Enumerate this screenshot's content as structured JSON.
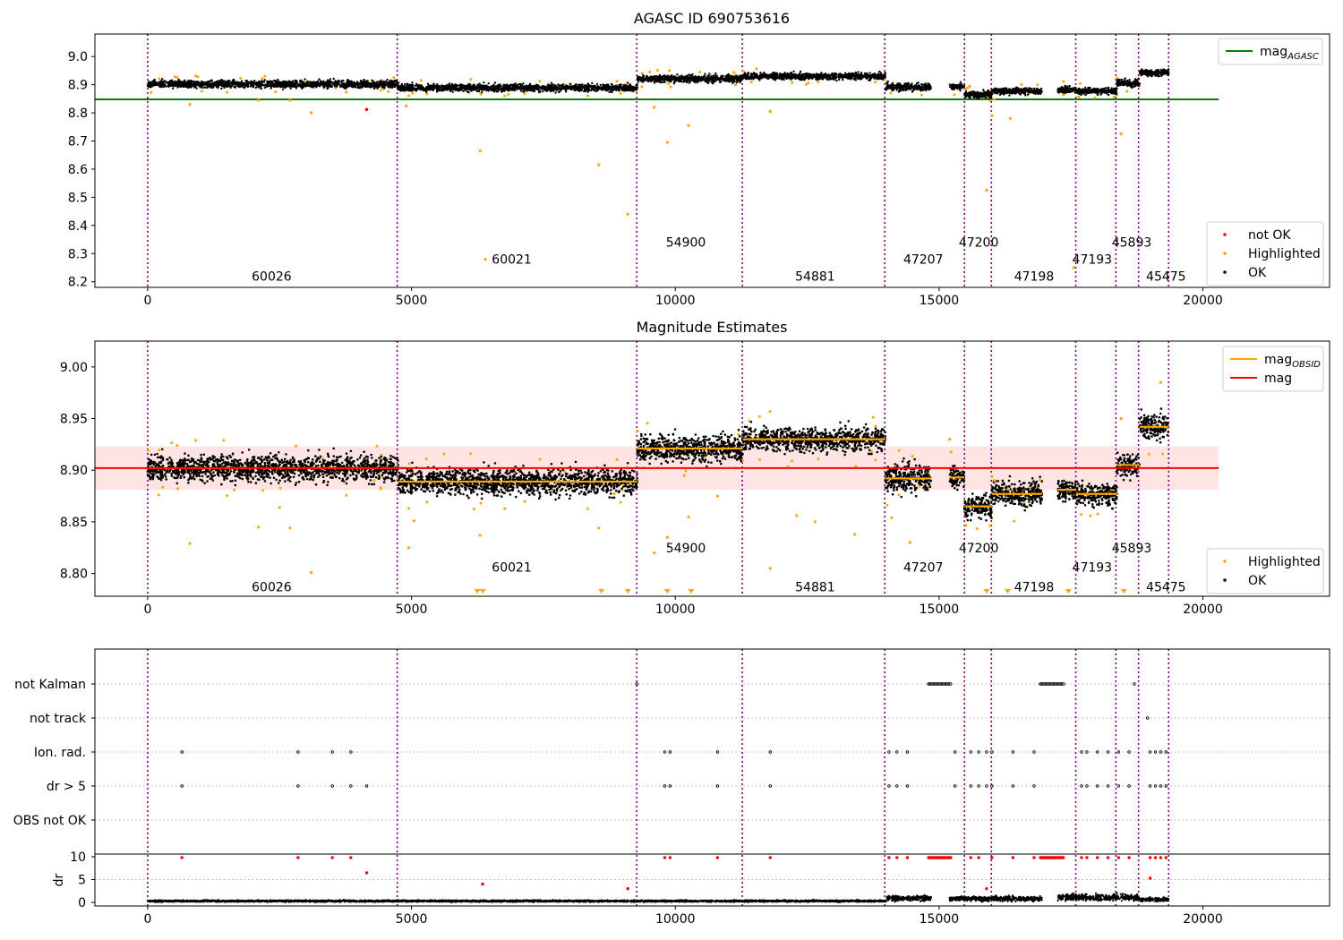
{
  "chart_data": [
    {
      "type": "scatter",
      "title": "AGASC ID 690753616",
      "xlim": [
        -1000,
        22400
      ],
      "ylim": [
        8.18,
        9.08
      ],
      "x_ticks": [
        0,
        5000,
        10000,
        15000,
        20000
      ],
      "y_ticks": [
        8.2,
        8.3,
        8.4,
        8.5,
        8.6,
        8.7,
        8.8,
        8.9,
        9.0
      ],
      "y_tick_labels": [
        "8.2",
        "8.3",
        "8.4",
        "8.5",
        "8.6",
        "8.7",
        "8.8",
        "8.9",
        "9.0"
      ],
      "mag_agasc": 8.848,
      "mag_agasc_x_range": [
        -1000,
        20300
      ],
      "legend_upper": {
        "position": "upper right",
        "entries": [
          {
            "name": "mag",
            "sub": "AGASC",
            "color": "#008000",
            "kind": "line"
          }
        ]
      },
      "legend_lower": {
        "position": "lower right",
        "entries": [
          {
            "name": "not OK",
            "color": "#ff0000",
            "kind": "point"
          },
          {
            "name": "Highlighted",
            "color": "#ffa500",
            "kind": "point"
          },
          {
            "name": "OK",
            "color": "#000000",
            "kind": "point"
          }
        ]
      },
      "obsid_labels": [
        {
          "text": "60026",
          "x": 2350,
          "y": 8.22
        },
        {
          "text": "60021",
          "x": 6900,
          "y": 8.28
        },
        {
          "text": "54900",
          "x": 10200,
          "y": 8.34
        },
        {
          "text": "54881",
          "x": 12650,
          "y": 8.22
        },
        {
          "text": "47207",
          "x": 14700,
          "y": 8.28
        },
        {
          "text": "47200",
          "x": 15750,
          "y": 8.34
        },
        {
          "text": "47198",
          "x": 16800,
          "y": 8.22
        },
        {
          "text": "47193",
          "x": 17900,
          "y": 8.28
        },
        {
          "text": "45893",
          "x": 18650,
          "y": 8.34
        },
        {
          "text": "45475",
          "x": 19300,
          "y": 8.22
        }
      ],
      "segments": [
        {
          "x": [
            0,
            4750
          ],
          "mean": 8.902,
          "spread": 0.012
        },
        {
          "x": [
            4750,
            9280
          ],
          "mean": 8.889,
          "spread": 0.012
        },
        {
          "x": [
            9280,
            11280
          ],
          "mean": 8.921,
          "spread": 0.012
        },
        {
          "x": [
            11280,
            13980
          ],
          "mean": 8.93,
          "spread": 0.011
        },
        {
          "x": [
            13980,
            14850
          ],
          "mean": 8.892,
          "spread": 0.013
        },
        {
          "x": [
            15200,
            15480
          ],
          "mean": 8.893,
          "spread": 0.01
        },
        {
          "x": [
            15480,
            16000
          ],
          "mean": 8.865,
          "spread": 0.011
        },
        {
          "x": [
            16000,
            16950
          ],
          "mean": 8.877,
          "spread": 0.011
        },
        {
          "x": [
            17250,
            17600
          ],
          "mean": 8.881,
          "spread": 0.01
        },
        {
          "x": [
            17600,
            18370
          ],
          "mean": 8.877,
          "spread": 0.011
        },
        {
          "x": [
            18370,
            18800
          ],
          "mean": 8.905,
          "spread": 0.011
        },
        {
          "x": [
            18800,
            19350
          ],
          "mean": 8.942,
          "spread": 0.011
        }
      ],
      "highlighted_outliers": [
        [
          800,
          8.83
        ],
        [
          2100,
          8.845
        ],
        [
          2700,
          8.845
        ],
        [
          3100,
          8.8
        ],
        [
          4900,
          8.825
        ],
        [
          6300,
          8.665
        ],
        [
          6400,
          8.28
        ],
        [
          8550,
          8.615
        ],
        [
          9100,
          8.44
        ],
        [
          9600,
          8.82
        ],
        [
          9850,
          8.695
        ],
        [
          10250,
          8.755
        ],
        [
          11800,
          8.805
        ],
        [
          15900,
          8.525
        ],
        [
          16000,
          8.79
        ],
        [
          16350,
          8.78
        ],
        [
          17550,
          8.25
        ],
        [
          18450,
          8.725
        ]
      ],
      "not_ok_points": [
        [
          4150,
          8.812
        ]
      ]
    },
    {
      "type": "scatter",
      "title": "Magnitude Estimates",
      "xlim": [
        -1000,
        22400
      ],
      "ylim": [
        8.778,
        9.025
      ],
      "x_ticks": [
        0,
        5000,
        10000,
        15000,
        20000
      ],
      "y_ticks": [
        8.8,
        8.85,
        8.9,
        8.95,
        9.0
      ],
      "y_tick_labels": [
        "8.80",
        "8.85",
        "8.90",
        "8.95",
        "9.00"
      ],
      "mag": 8.902,
      "mag_band": [
        8.881,
        8.923
      ],
      "mag_x_range": [
        -1000,
        20300
      ],
      "legend_upper": {
        "position": "upper right",
        "entries": [
          {
            "name": "mag",
            "sub": "OBSID",
            "color": "#ffa500",
            "kind": "line"
          },
          {
            "name": "mag",
            "sub": "",
            "color": "#ff0000",
            "kind": "line"
          }
        ]
      },
      "legend_lower": {
        "position": "lower right",
        "entries": [
          {
            "name": "Highlighted",
            "color": "#ffa500",
            "kind": "point"
          },
          {
            "name": "OK",
            "color": "#000000",
            "kind": "point"
          }
        ]
      },
      "obsid_labels": [
        {
          "text": "60026",
          "x": 2350,
          "y": 8.787
        },
        {
          "text": "60021",
          "x": 6900,
          "y": 8.806
        },
        {
          "text": "54900",
          "x": 10200,
          "y": 8.825
        },
        {
          "text": "54881",
          "x": 12650,
          "y": 8.787
        },
        {
          "text": "47207",
          "x": 14700,
          "y": 8.806
        },
        {
          "text": "47200",
          "x": 15750,
          "y": 8.825
        },
        {
          "text": "47198",
          "x": 16800,
          "y": 8.787
        },
        {
          "text": "47193",
          "x": 17900,
          "y": 8.806
        },
        {
          "text": "45893",
          "x": 18650,
          "y": 8.825
        },
        {
          "text": "45475",
          "x": 19300,
          "y": 8.787
        }
      ],
      "highlighted_outliers": [
        [
          800,
          8.829
        ],
        [
          2100,
          8.845
        ],
        [
          2500,
          8.864
        ],
        [
          2700,
          8.844
        ],
        [
          3100,
          8.801
        ],
        [
          4950,
          8.825
        ],
        [
          5050,
          8.851
        ],
        [
          6300,
          8.837
        ],
        [
          8550,
          8.844
        ],
        [
          9600,
          8.82
        ],
        [
          9850,
          8.835
        ],
        [
          10250,
          8.855
        ],
        [
          10800,
          8.875
        ],
        [
          11800,
          8.805
        ],
        [
          12300,
          8.856
        ],
        [
          12650,
          8.85
        ],
        [
          13400,
          8.838
        ],
        [
          14100,
          8.854
        ],
        [
          14450,
          8.83
        ],
        [
          15200,
          8.93
        ],
        [
          16050,
          8.89
        ],
        [
          18450,
          8.95
        ],
        [
          19200,
          8.985
        ]
      ],
      "floor_markers": [
        6250,
        6350,
        8600,
        9100,
        9850,
        10300,
        15900,
        16300,
        17450,
        18500
      ]
    },
    {
      "type": "scatter",
      "title": "",
      "xlim": [
        -1000,
        22400
      ],
      "x_ticks": [
        0,
        5000,
        10000,
        15000,
        20000
      ],
      "flag_labels": [
        "not Kalman",
        "not track",
        "Ion. rad.",
        "dr > 5",
        "OBS not OK"
      ],
      "flag_points": {
        "not Kalman": [
          9270,
          18700
        ],
        "not track": [
          18950
        ],
        "Ion. rad.": [
          650,
          2850,
          3500,
          3850,
          9800,
          9900,
          10800,
          11800,
          14050,
          14200,
          14400,
          15300,
          15600,
          15750,
          15900,
          16000,
          16400,
          16800,
          17700,
          17800,
          18000,
          18200,
          18400,
          18600,
          19000,
          19100,
          19200,
          19300
        ],
        "dr > 5": [
          650,
          2850,
          3500,
          3850,
          4150,
          9800,
          9900,
          10800,
          11800,
          14050,
          14200,
          14400,
          15300,
          15600,
          15750,
          15900,
          16000,
          16400,
          16800,
          17700,
          17800,
          18000,
          18200,
          18400,
          18600,
          19000,
          19100,
          19200,
          19300
        ],
        "OBS not OK": []
      },
      "flag_ranges": {
        "not Kalman": [
          [
            14800,
            15220
          ],
          [
            16920,
            17360
          ]
        ]
      },
      "dr_ylabel": "dr",
      "dr_ylim": [
        -0.3,
        10.6
      ],
      "dr_y_ticks": [
        0,
        5,
        10
      ],
      "dr_y_tick_labels": [
        "0",
        "5",
        "10"
      ],
      "dr_baseline": [
        {
          "x": [
            0,
            14000
          ],
          "level": 0.3
        },
        {
          "x": [
            14000,
            14850
          ],
          "level": 0.9
        },
        {
          "x": [
            15200,
            16950
          ],
          "level": 0.8
        },
        {
          "x": [
            17250,
            18800
          ],
          "level": 1.1
        },
        {
          "x": [
            18800,
            19350
          ],
          "level": 0.6
        }
      ],
      "dr_red_points": [
        [
          650,
          9.8
        ],
        [
          2850,
          9.8
        ],
        [
          3500,
          9.8
        ],
        [
          3850,
          9.8
        ],
        [
          4150,
          6.5
        ],
        [
          6350,
          4.0
        ],
        [
          9100,
          3.0
        ],
        [
          9800,
          9.8
        ],
        [
          9900,
          9.8
        ],
        [
          10800,
          9.8
        ],
        [
          11800,
          9.8
        ],
        [
          14050,
          9.8
        ],
        [
          14200,
          9.8
        ],
        [
          14400,
          9.8
        ],
        [
          15600,
          9.8
        ],
        [
          15750,
          9.8
        ],
        [
          15900,
          3.0
        ],
        [
          16000,
          9.8
        ],
        [
          16400,
          9.8
        ],
        [
          16800,
          9.8
        ],
        [
          17700,
          9.8
        ],
        [
          17800,
          9.8
        ],
        [
          18000,
          9.8
        ],
        [
          18200,
          9.8
        ],
        [
          18400,
          9.8
        ],
        [
          18600,
          9.8
        ],
        [
          19000,
          9.8
        ],
        [
          19100,
          9.8
        ],
        [
          19200,
          9.8
        ],
        [
          19300,
          9.8
        ],
        [
          19000,
          5.3
        ]
      ],
      "dr_red_ranges": [
        [
          14800,
          15220
        ],
        [
          16920,
          17360
        ]
      ]
    }
  ],
  "obsid_boundaries": [
    0,
    4730,
    9270,
    11270,
    13970,
    15480,
    15990,
    17590,
    18350,
    18780,
    19350
  ],
  "colors": {
    "ok": "#000000",
    "highlighted": "#ffa500",
    "not_ok": "#ff0000",
    "mag_agasc": "#008000",
    "mag": "#ff0000",
    "mag_band": "#ffe4e4",
    "obsid_band": "#fff0d8",
    "boundary": "#800080",
    "grid": "#b0b0b0"
  }
}
